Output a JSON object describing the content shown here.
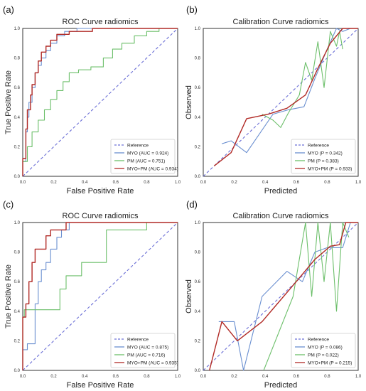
{
  "colors": {
    "reference": "#6b6fd6",
    "myo": "#6a8fd0",
    "pm": "#6cbf6a",
    "myo_pm": "#b12a26",
    "frame": "#333333",
    "legend_border": "#cccccc"
  },
  "chart_data": [
    {
      "panel_label": "(a)",
      "type": "line",
      "title": "ROC Curve radiomics",
      "xlabel": "False Positive Rate",
      "ylabel": "True Positive Rate",
      "xlim": [
        0,
        1
      ],
      "ylim": [
        0,
        1
      ],
      "xticks": [
        "0.0",
        "0.2",
        "0.4",
        "0.6",
        "0.8",
        "1.0"
      ],
      "yticks": [
        "0.0",
        "0.2",
        "0.4",
        "0.6",
        "0.8",
        "1.0"
      ],
      "grid": false,
      "legend_position": "lower-right",
      "legend": [
        "Reference",
        "MYO (AUC = 0.924)",
        "PM (AUC = 0.751)",
        "MYO+PM (AUC = 0.934)"
      ],
      "series": [
        {
          "key": "reference",
          "dashed": true,
          "points": [
            [
              0,
              0
            ],
            [
              1,
              1
            ]
          ]
        },
        {
          "key": "myo",
          "dashed": false,
          "points": [
            [
              0,
              0
            ],
            [
              0,
              0.1
            ],
            [
              0.02,
              0.1
            ],
            [
              0.02,
              0.3
            ],
            [
              0.03,
              0.3
            ],
            [
              0.03,
              0.4
            ],
            [
              0.04,
              0.4
            ],
            [
              0.04,
              0.5
            ],
            [
              0.06,
              0.5
            ],
            [
              0.06,
              0.6
            ],
            [
              0.08,
              0.6
            ],
            [
              0.08,
              0.7
            ],
            [
              0.1,
              0.7
            ],
            [
              0.1,
              0.75
            ],
            [
              0.12,
              0.75
            ],
            [
              0.12,
              0.8
            ],
            [
              0.15,
              0.8
            ],
            [
              0.15,
              0.85
            ],
            [
              0.18,
              0.85
            ],
            [
              0.18,
              0.9
            ],
            [
              0.22,
              0.9
            ],
            [
              0.22,
              0.95
            ],
            [
              0.27,
              0.95
            ],
            [
              0.27,
              0.98
            ],
            [
              0.35,
              0.98
            ],
            [
              0.35,
              1.0
            ],
            [
              1,
              1
            ]
          ]
        },
        {
          "key": "pm",
          "dashed": false,
          "points": [
            [
              0,
              0
            ],
            [
              0,
              0.1
            ],
            [
              0.03,
              0.1
            ],
            [
              0.03,
              0.2
            ],
            [
              0.06,
              0.2
            ],
            [
              0.06,
              0.3
            ],
            [
              0.1,
              0.3
            ],
            [
              0.1,
              0.38
            ],
            [
              0.14,
              0.38
            ],
            [
              0.14,
              0.45
            ],
            [
              0.18,
              0.45
            ],
            [
              0.18,
              0.52
            ],
            [
              0.22,
              0.52
            ],
            [
              0.22,
              0.58
            ],
            [
              0.26,
              0.58
            ],
            [
              0.26,
              0.64
            ],
            [
              0.3,
              0.64
            ],
            [
              0.3,
              0.7
            ],
            [
              0.36,
              0.7
            ],
            [
              0.36,
              0.72
            ],
            [
              0.44,
              0.72
            ],
            [
              0.44,
              0.74
            ],
            [
              0.52,
              0.74
            ],
            [
              0.52,
              0.8
            ],
            [
              0.58,
              0.8
            ],
            [
              0.58,
              0.86
            ],
            [
              0.64,
              0.86
            ],
            [
              0.64,
              0.9
            ],
            [
              0.72,
              0.9
            ],
            [
              0.72,
              0.95
            ],
            [
              0.8,
              0.95
            ],
            [
              0.8,
              0.98
            ],
            [
              0.88,
              0.98
            ],
            [
              0.88,
              1.0
            ],
            [
              1,
              1
            ]
          ]
        },
        {
          "key": "myo_pm",
          "dashed": false,
          "points": [
            [
              0,
              0
            ],
            [
              0,
              0.12
            ],
            [
              0.02,
              0.12
            ],
            [
              0.02,
              0.32
            ],
            [
              0.03,
              0.32
            ],
            [
              0.03,
              0.45
            ],
            [
              0.05,
              0.45
            ],
            [
              0.05,
              0.55
            ],
            [
              0.06,
              0.55
            ],
            [
              0.06,
              0.62
            ],
            [
              0.08,
              0.62
            ],
            [
              0.08,
              0.7
            ],
            [
              0.1,
              0.7
            ],
            [
              0.1,
              0.78
            ],
            [
              0.12,
              0.78
            ],
            [
              0.12,
              0.84
            ],
            [
              0.15,
              0.84
            ],
            [
              0.15,
              0.88
            ],
            [
              0.18,
              0.88
            ],
            [
              0.18,
              0.92
            ],
            [
              0.22,
              0.92
            ],
            [
              0.22,
              0.96
            ],
            [
              0.3,
              0.96
            ],
            [
              0.3,
              0.98
            ],
            [
              0.45,
              0.98
            ],
            [
              0.45,
              1.0
            ],
            [
              1,
              1
            ]
          ]
        }
      ]
    },
    {
      "panel_label": "(b)",
      "type": "line",
      "title": "Calibration Curve radiomics",
      "xlabel": "Predicted",
      "ylabel": "Observed",
      "xlim": [
        0,
        1
      ],
      "ylim": [
        0,
        1
      ],
      "xticks": [
        "0.0",
        "0.2",
        "0.4",
        "0.6",
        "0.8",
        "1.0"
      ],
      "yticks": [
        "0.0",
        "0.2",
        "0.4",
        "0.6",
        "0.8",
        "1.0"
      ],
      "grid": false,
      "legend_position": "lower-right",
      "legend": [
        "Reference",
        "MYO (P = 0.342)",
        "PM (P = 0.383)",
        "MYO+PM (P = 0.933)"
      ],
      "series": [
        {
          "key": "reference",
          "dashed": true,
          "points": [
            [
              0,
              0
            ],
            [
              1,
              1
            ]
          ]
        },
        {
          "key": "myo",
          "dashed": false,
          "points": [
            [
              0.12,
              0.22
            ],
            [
              0.18,
              0.24
            ],
            [
              0.28,
              0.16
            ],
            [
              0.45,
              0.42
            ],
            [
              0.55,
              0.45
            ],
            [
              0.65,
              0.47
            ],
            [
              0.72,
              0.66
            ],
            [
              0.8,
              0.86
            ],
            [
              0.86,
              1.0
            ],
            [
              0.9,
              0.98
            ],
            [
              0.95,
              1.0
            ],
            [
              1.0,
              1.0
            ]
          ]
        },
        {
          "key": "pm",
          "dashed": false,
          "points": [
            [
              0.38,
              0.42
            ],
            [
              0.45,
              0.38
            ],
            [
              0.5,
              0.33
            ],
            [
              0.55,
              0.43
            ],
            [
              0.62,
              0.55
            ],
            [
              0.66,
              0.77
            ],
            [
              0.7,
              0.65
            ],
            [
              0.74,
              0.91
            ],
            [
              0.78,
              0.6
            ],
            [
              0.82,
              0.98
            ],
            [
              0.86,
              0.88
            ],
            [
              0.88,
              0.98
            ],
            [
              0.9,
              0.86
            ]
          ]
        },
        {
          "key": "myo_pm",
          "dashed": false,
          "points": [
            [
              0.07,
              0.07
            ],
            [
              0.18,
              0.16
            ],
            [
              0.28,
              0.39
            ],
            [
              0.42,
              0.42
            ],
            [
              0.54,
              0.46
            ],
            [
              0.66,
              0.55
            ],
            [
              0.74,
              0.73
            ],
            [
              0.82,
              0.9
            ],
            [
              0.9,
              1.0
            ],
            [
              1.0,
              1.0
            ]
          ]
        }
      ]
    },
    {
      "panel_label": "(c)",
      "type": "line",
      "title": "ROC Curve radiomics",
      "xlabel": "False Positive Rate",
      "ylabel": "True Positive Rate",
      "xlim": [
        0,
        1
      ],
      "ylim": [
        0,
        1
      ],
      "xticks": [
        "0.0",
        "0.2",
        "0.4",
        "0.6",
        "0.8",
        "1.0"
      ],
      "yticks": [
        "0.0",
        "0.2",
        "0.4",
        "0.6",
        "0.8",
        "1.0"
      ],
      "grid": false,
      "legend_position": "lower-right",
      "legend": [
        "Reference",
        "MYO (AUC = 0.875)",
        "PM (AUC = 0.716)",
        "MYO+PM (AUC = 0.935)"
      ],
      "series": [
        {
          "key": "reference",
          "dashed": true,
          "points": [
            [
              0,
              0
            ],
            [
              1,
              1
            ]
          ]
        },
        {
          "key": "myo",
          "dashed": false,
          "points": [
            [
              0,
              0
            ],
            [
              0,
              0.14
            ],
            [
              0.03,
              0.14
            ],
            [
              0.03,
              0.18
            ],
            [
              0.08,
              0.18
            ],
            [
              0.08,
              0.45
            ],
            [
              0.1,
              0.45
            ],
            [
              0.1,
              0.6
            ],
            [
              0.12,
              0.6
            ],
            [
              0.12,
              0.68
            ],
            [
              0.15,
              0.68
            ],
            [
              0.15,
              0.73
            ],
            [
              0.18,
              0.73
            ],
            [
              0.18,
              0.82
            ],
            [
              0.22,
              0.82
            ],
            [
              0.22,
              0.9
            ],
            [
              0.25,
              0.9
            ],
            [
              0.25,
              0.95
            ],
            [
              0.3,
              0.95
            ],
            [
              0.3,
              1.0
            ],
            [
              1,
              1
            ]
          ]
        },
        {
          "key": "pm",
          "dashed": false,
          "points": [
            [
              0,
              0
            ],
            [
              0,
              0.36
            ],
            [
              0.01,
              0.36
            ],
            [
              0.01,
              0.41
            ],
            [
              0.24,
              0.41
            ],
            [
              0.24,
              0.55
            ],
            [
              0.28,
              0.55
            ],
            [
              0.28,
              0.64
            ],
            [
              0.38,
              0.64
            ],
            [
              0.38,
              0.73
            ],
            [
              0.54,
              0.73
            ],
            [
              0.54,
              0.95
            ],
            [
              0.8,
              0.95
            ],
            [
              0.8,
              1.0
            ],
            [
              1,
              1
            ]
          ]
        },
        {
          "key": "myo_pm",
          "dashed": false,
          "points": [
            [
              0,
              0
            ],
            [
              0,
              0.36
            ],
            [
              0.02,
              0.36
            ],
            [
              0.02,
              0.45
            ],
            [
              0.04,
              0.45
            ],
            [
              0.04,
              0.6
            ],
            [
              0.06,
              0.6
            ],
            [
              0.06,
              0.73
            ],
            [
              0.08,
              0.73
            ],
            [
              0.08,
              0.82
            ],
            [
              0.15,
              0.82
            ],
            [
              0.15,
              0.91
            ],
            [
              0.18,
              0.91
            ],
            [
              0.18,
              0.95
            ],
            [
              0.28,
              0.95
            ],
            [
              0.28,
              1.0
            ],
            [
              1,
              1
            ]
          ]
        }
      ]
    },
    {
      "panel_label": "(d)",
      "type": "line",
      "title": "Calibration Curve radiomics",
      "xlabel": "Predicted",
      "ylabel": "Observed",
      "xlim": [
        0,
        1
      ],
      "ylim": [
        0,
        1
      ],
      "xticks": [
        "0.0",
        "0.2",
        "0.4",
        "0.6",
        "0.8",
        "1.0"
      ],
      "yticks": [
        "0.0",
        "0.2",
        "0.4",
        "0.6",
        "0.8",
        "1.0"
      ],
      "grid": false,
      "legend_position": "lower-right",
      "legend": [
        "Reference",
        "MYO (P = 0.086)",
        "PM (P = 0.022)",
        "MYO+PM (P = 0.215)"
      ],
      "series": [
        {
          "key": "reference",
          "dashed": true,
          "points": [
            [
              0,
              0
            ],
            [
              1,
              1
            ]
          ]
        },
        {
          "key": "myo",
          "dashed": false,
          "points": [
            [
              0.1,
              0.33
            ],
            [
              0.2,
              0.33
            ],
            [
              0.26,
              0.0
            ],
            [
              0.38,
              0.5
            ],
            [
              0.54,
              0.67
            ],
            [
              0.64,
              0.6
            ],
            [
              0.72,
              0.8
            ],
            [
              0.8,
              0.83
            ],
            [
              0.9,
              0.83
            ],
            [
              0.95,
              1.0
            ],
            [
              1.0,
              1.0
            ]
          ]
        },
        {
          "key": "pm",
          "dashed": false,
          "points": [
            [
              0.39,
              0.0
            ],
            [
              0.58,
              0.5
            ],
            [
              0.66,
              1.0
            ],
            [
              0.7,
              0.5
            ],
            [
              0.74,
              1.0
            ],
            [
              0.78,
              0.6
            ],
            [
              0.82,
              1.0
            ],
            [
              0.86,
              0.4
            ],
            [
              0.9,
              1.0
            ],
            [
              0.94,
              0.9
            ]
          ]
        },
        {
          "key": "myo_pm",
          "dashed": false,
          "points": [
            [
              0.04,
              0.0
            ],
            [
              0.12,
              0.33
            ],
            [
              0.22,
              0.2
            ],
            [
              0.38,
              0.33
            ],
            [
              0.6,
              0.6
            ],
            [
              0.72,
              0.75
            ],
            [
              0.82,
              0.84
            ],
            [
              0.88,
              0.85
            ],
            [
              0.92,
              1.0
            ],
            [
              1.0,
              1.0
            ]
          ]
        }
      ]
    }
  ]
}
